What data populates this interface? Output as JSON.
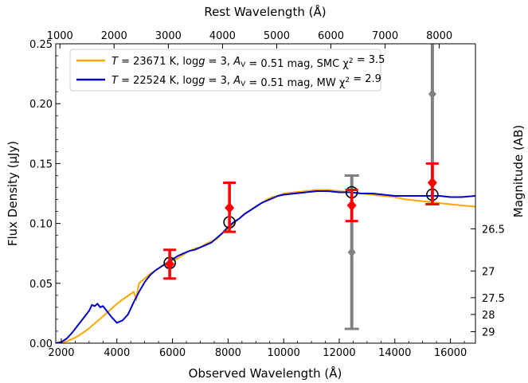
{
  "chart_data": {
    "type": "line",
    "xlabel": "Observed Wavelength (Å)",
    "ylabel": "Flux Density (μJy)",
    "top_xlabel": "Rest Wavelength (Å)",
    "right_ylabel": "Magnitude (AB)",
    "xlim": [
      1800,
      16900
    ],
    "ylim": [
      0.0,
      0.25
    ],
    "x_ticks": [
      2000,
      4000,
      6000,
      8000,
      10000,
      12000,
      14000,
      16000
    ],
    "y_ticks": [
      0.0,
      0.05,
      0.1,
      0.15,
      0.2,
      0.25
    ],
    "y_tick_labels": [
      "0.00",
      "0.05",
      "0.10",
      "0.15",
      "0.20",
      "0.25"
    ],
    "top_x_ticks": [
      1000,
      2000,
      3000,
      4000,
      5000,
      6000,
      7000,
      8000
    ],
    "rest_frame_redshift": 0.95,
    "right_ticks": [
      {
        "label": "26.5",
        "flux": 0.0955
      },
      {
        "label": "27",
        "flux": 0.0603
      },
      {
        "label": "27.5",
        "flux": 0.038
      },
      {
        "label": "28",
        "flux": 0.024
      },
      {
        "label": "29",
        "flux": 0.0096
      }
    ],
    "legend": {
      "placement": "top-left",
      "entries": [
        {
          "color": "#ffa500",
          "T": "23671",
          "logg": "3",
          "Av": "0.51",
          "ext": "SMC",
          "chi2": "3.5"
        },
        {
          "color": "#0000cc",
          "T": "22524",
          "logg": "3",
          "Av": "0.51",
          "ext": "MW",
          "chi2": "2.9"
        }
      ]
    },
    "series": [
      {
        "color": "#ffa500",
        "x": [
          1800,
          2000,
          2200,
          2400,
          2600,
          2800,
          3000,
          3200,
          3400,
          3600,
          3800,
          4000,
          4200,
          4400,
          4600,
          4700,
          4750,
          4800,
          5000,
          5200,
          5400,
          5600,
          5800,
          6000,
          6200,
          6400,
          6600,
          6800,
          7000,
          7200,
          7400,
          7600,
          7800,
          8000,
          8200,
          8400,
          8600,
          8800,
          9000,
          9200,
          9400,
          9600,
          9800,
          10000,
          10400,
          10800,
          11200,
          11600,
          12000,
          12400,
          12800,
          13200,
          13600,
          14000,
          14400,
          14800,
          15200,
          15600,
          16000,
          16400,
          16900
        ],
        "y": [
          0.0,
          0.0005,
          0.0015,
          0.0035,
          0.006,
          0.009,
          0.0125,
          0.0165,
          0.0205,
          0.0245,
          0.0288,
          0.0328,
          0.0365,
          0.0395,
          0.0428,
          0.037,
          0.045,
          0.05,
          0.054,
          0.058,
          0.061,
          0.064,
          0.067,
          0.069,
          0.071,
          0.074,
          0.077,
          0.079,
          0.08,
          0.083,
          0.085,
          0.087,
          0.092,
          0.095,
          0.1,
          0.104,
          0.108,
          0.111,
          0.114,
          0.117,
          0.12,
          0.122,
          0.123,
          0.125,
          0.126,
          0.127,
          0.128,
          0.128,
          0.127,
          0.126,
          0.125,
          0.124,
          0.123,
          0.122,
          0.12,
          0.119,
          0.118,
          0.117,
          0.116,
          0.115,
          0.114
        ]
      },
      {
        "color": "#0000cc",
        "x": [
          1800,
          2000,
          2200,
          2400,
          2600,
          2800,
          3000,
          3100,
          3200,
          3300,
          3400,
          3500,
          3600,
          3800,
          4000,
          4200,
          4400,
          4600,
          4800,
          5000,
          5200,
          5400,
          5600,
          5800,
          6000,
          6200,
          6400,
          6600,
          6800,
          7000,
          7200,
          7400,
          7600,
          7800,
          8000,
          8200,
          8400,
          8600,
          8800,
          9000,
          9200,
          9400,
          9600,
          9800,
          10000,
          10400,
          10800,
          11200,
          11600,
          12000,
          12400,
          12800,
          13200,
          13600,
          14000,
          14400,
          14800,
          15200,
          15600,
          16000,
          16400,
          16900
        ],
        "y": [
          0.0,
          0.001,
          0.004,
          0.009,
          0.015,
          0.021,
          0.027,
          0.032,
          0.031,
          0.033,
          0.03,
          0.031,
          0.028,
          0.022,
          0.017,
          0.019,
          0.024,
          0.034,
          0.043,
          0.051,
          0.057,
          0.061,
          0.064,
          0.067,
          0.07,
          0.073,
          0.075,
          0.077,
          0.078,
          0.08,
          0.082,
          0.084,
          0.088,
          0.092,
          0.097,
          0.101,
          0.104,
          0.108,
          0.111,
          0.114,
          0.117,
          0.119,
          0.121,
          0.123,
          0.124,
          0.125,
          0.126,
          0.127,
          0.127,
          0.126,
          0.126,
          0.125,
          0.125,
          0.124,
          0.123,
          0.123,
          0.123,
          0.123,
          0.123,
          0.122,
          0.122,
          0.123
        ]
      }
    ],
    "model_points": [
      {
        "x": 5900,
        "y": 0.067
      },
      {
        "x": 8050,
        "y": 0.101
      },
      {
        "x": 12450,
        "y": 0.126
      },
      {
        "x": 15350,
        "y": 0.124
      }
    ],
    "observed_points": [
      {
        "x": 5900,
        "y": 0.066,
        "yerr_low": 0.054,
        "yerr_high": 0.078,
        "color": "#ff0000"
      },
      {
        "x": 8050,
        "y": 0.113,
        "yerr_low": 0.093,
        "yerr_high": 0.134,
        "color": "#ff0000"
      },
      {
        "x": 12450,
        "y": 0.115,
        "yerr_low": 0.102,
        "yerr_high": 0.128,
        "color": "#ff0000"
      },
      {
        "x": 15350,
        "y": 0.134,
        "yerr_low": 0.116,
        "yerr_high": 0.15,
        "color": "#ff0000"
      }
    ],
    "gray_points": [
      {
        "x": 12450,
        "y": 0.076,
        "yerr_low": 0.012,
        "yerr_high": 0.14,
        "color": "#808080"
      },
      {
        "x": 15350,
        "y": 0.208,
        "yerr_low": 0.116,
        "yerr_high": 0.26,
        "color": "#808080"
      }
    ]
  }
}
